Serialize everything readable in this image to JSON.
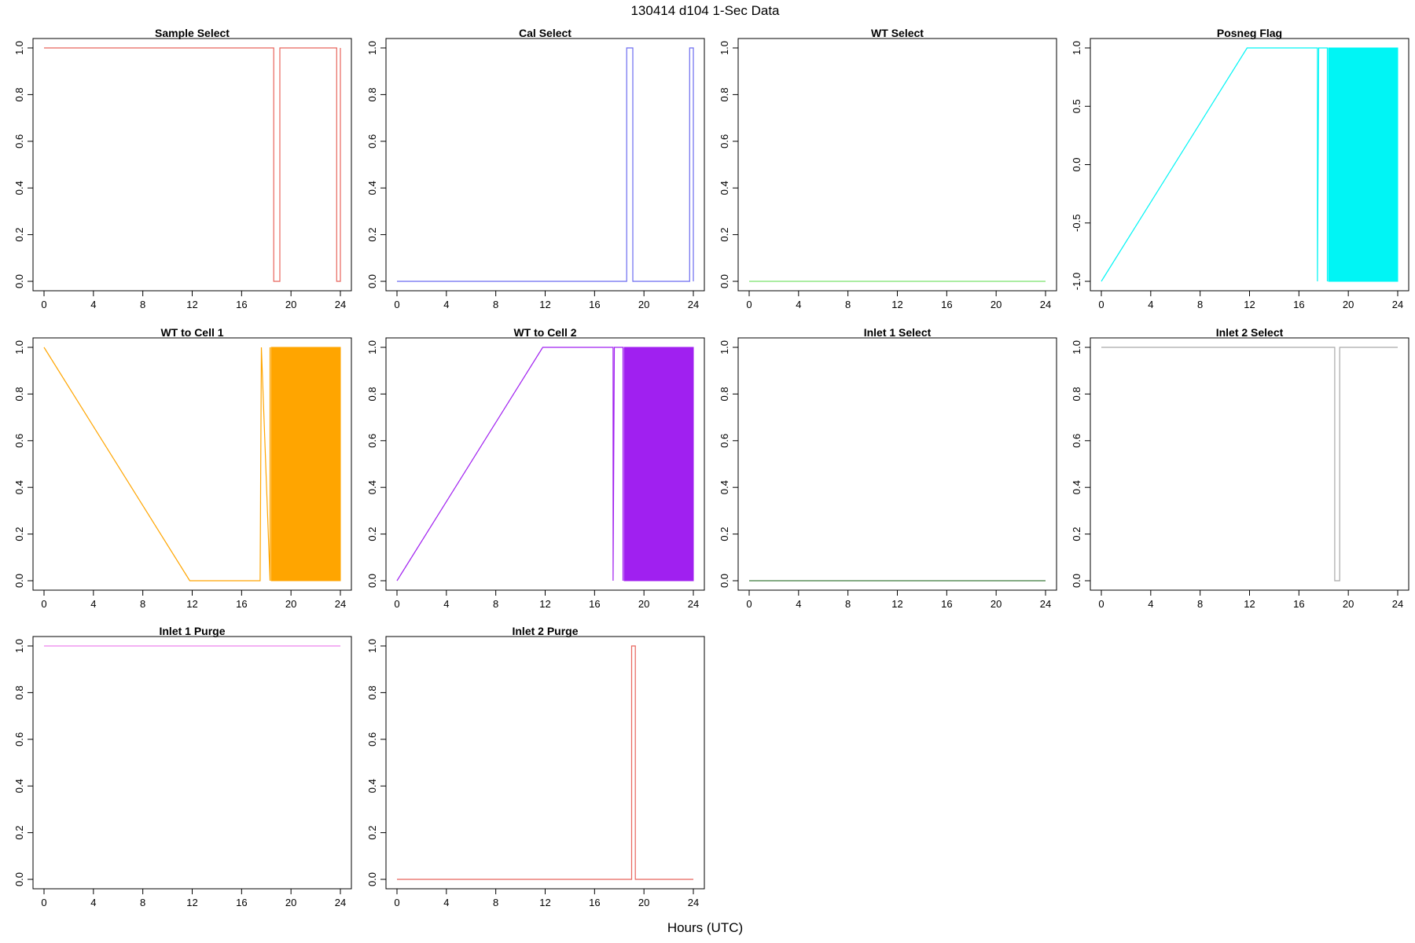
{
  "figure": {
    "title": "130414   d104   1-Sec Data",
    "xlabel": "Hours (UTC)"
  },
  "chart_data": [
    {
      "type": "line",
      "title": "Sample Select",
      "color": "#e8645c",
      "xlim": [
        0,
        24
      ],
      "ylim": [
        0,
        1
      ],
      "xticks": [
        0,
        4,
        8,
        12,
        16,
        20,
        24
      ],
      "yticks": [
        "0.0",
        "0.2",
        "0.4",
        "0.6",
        "0.8",
        "1.0"
      ],
      "x": [
        0,
        18.6,
        18.6,
        19.1,
        19.1,
        23.7,
        23.7,
        24.0,
        24.0
      ],
      "y": [
        1,
        1,
        0,
        0,
        1,
        1,
        0,
        0,
        1
      ]
    },
    {
      "type": "line",
      "title": "Cal Select",
      "color": "#6b6bf0",
      "xlim": [
        0,
        24
      ],
      "ylim": [
        0,
        1
      ],
      "xticks": [
        0,
        4,
        8,
        12,
        16,
        20,
        24
      ],
      "yticks": [
        "0.0",
        "0.2",
        "0.4",
        "0.6",
        "0.8",
        "1.0"
      ],
      "x": [
        0,
        18.6,
        18.6,
        19.1,
        19.1,
        23.7,
        23.7,
        24.0,
        24.0
      ],
      "y": [
        0,
        0,
        1,
        1,
        0,
        0,
        1,
        1,
        0
      ]
    },
    {
      "type": "line",
      "title": "WT Select",
      "color": "#7ae26c",
      "xlim": [
        0,
        24
      ],
      "ylim": [
        0,
        1
      ],
      "xticks": [
        0,
        4,
        8,
        12,
        16,
        20,
        24
      ],
      "yticks": [
        "0.0",
        "0.2",
        "0.4",
        "0.6",
        "0.8",
        "1.0"
      ],
      "x": [
        0,
        24
      ],
      "y": [
        0,
        0
      ]
    },
    {
      "type": "line",
      "title": "Posneg Flag",
      "color": "#00f5f5",
      "xlim": [
        0,
        24
      ],
      "ylim": [
        -1,
        1
      ],
      "xticks": [
        0,
        4,
        8,
        12,
        16,
        20,
        24
      ],
      "yticks": [
        "-1.0",
        "-0.5",
        "0.0",
        "0.5",
        "1.0"
      ],
      "x": [
        0,
        11.8,
        17.5,
        17.5,
        17.6,
        18.3,
        18.3
      ],
      "y": [
        -1,
        1,
        1,
        -1,
        1,
        1,
        -1
      ],
      "filled_range": [
        18.4,
        24.0
      ]
    },
    {
      "type": "line",
      "title": "WT to Cell 1",
      "color": "#ffa500",
      "xlim": [
        0,
        24
      ],
      "ylim": [
        0,
        1
      ],
      "xticks": [
        0,
        4,
        8,
        12,
        16,
        20,
        24
      ],
      "yticks": [
        "0.0",
        "0.2",
        "0.4",
        "0.6",
        "0.8",
        "1.0"
      ],
      "x": [
        0,
        11.8,
        17.5,
        17.6,
        18.3,
        18.3
      ],
      "y": [
        1,
        0,
        0,
        1,
        0,
        1
      ],
      "filled_range": [
        18.4,
        24.0
      ]
    },
    {
      "type": "line",
      "title": "WT to Cell 2",
      "color": "#a020f0",
      "xlim": [
        0,
        24
      ],
      "ylim": [
        0,
        1
      ],
      "xticks": [
        0,
        4,
        8,
        12,
        16,
        20,
        24
      ],
      "yticks": [
        "0.0",
        "0.2",
        "0.4",
        "0.6",
        "0.8",
        "1.0"
      ],
      "x": [
        0,
        11.8,
        17.5,
        17.5,
        17.6,
        18.3,
        18.3
      ],
      "y": [
        0,
        1,
        1,
        0,
        1,
        1,
        0
      ],
      "filled_range": [
        18.4,
        24.0
      ]
    },
    {
      "type": "line",
      "title": "Inlet 1 Select",
      "color": "#3a7a3a",
      "xlim": [
        0,
        24
      ],
      "ylim": [
        0,
        1
      ],
      "xticks": [
        0,
        4,
        8,
        12,
        16,
        20,
        24
      ],
      "yticks": [
        "0.0",
        "0.2",
        "0.4",
        "0.6",
        "0.8",
        "1.0"
      ],
      "x": [
        0,
        24
      ],
      "y": [
        0,
        0
      ]
    },
    {
      "type": "line",
      "title": "Inlet 2 Select",
      "color": "#a9a9a9",
      "xlim": [
        0,
        24
      ],
      "ylim": [
        0,
        1
      ],
      "xticks": [
        0,
        4,
        8,
        12,
        16,
        20,
        24
      ],
      "yticks": [
        "0.0",
        "0.2",
        "0.4",
        "0.6",
        "0.8",
        "1.0"
      ],
      "x": [
        0,
        18.9,
        18.9,
        19.3,
        19.3,
        24
      ],
      "y": [
        1,
        1,
        0,
        0,
        1,
        1
      ]
    },
    {
      "type": "line",
      "title": "Inlet 1 Purge",
      "color": "#ee82ee",
      "xlim": [
        0,
        24
      ],
      "ylim": [
        0,
        1
      ],
      "xticks": [
        0,
        4,
        8,
        12,
        16,
        20,
        24
      ],
      "yticks": [
        "0.0",
        "0.2",
        "0.4",
        "0.6",
        "0.8",
        "1.0"
      ],
      "x": [
        0,
        24
      ],
      "y": [
        1,
        1
      ]
    },
    {
      "type": "line",
      "title": "Inlet 2 Purge",
      "color": "#e8645c",
      "xlim": [
        0,
        24
      ],
      "ylim": [
        0,
        1
      ],
      "xticks": [
        0,
        4,
        8,
        12,
        16,
        20,
        24
      ],
      "yticks": [
        "0.0",
        "0.2",
        "0.4",
        "0.6",
        "0.8",
        "1.0"
      ],
      "x": [
        0,
        19.0,
        19.0,
        19.3,
        19.3,
        24
      ],
      "y": [
        0,
        0,
        1,
        1,
        0,
        0
      ]
    }
  ]
}
